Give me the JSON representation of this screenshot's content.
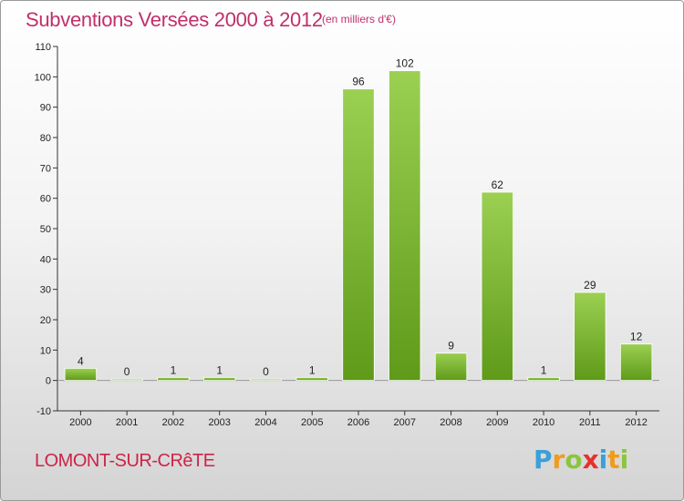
{
  "title": "Subventions Versées 2000 à 2012",
  "unit_note": "(en milliers d'€)",
  "place": "LOMONT-SUR-CRêTE",
  "logo": {
    "letters": [
      "P",
      "r",
      "o",
      "x",
      "i",
      "t",
      "i"
    ],
    "colors": [
      "#3aa0d8",
      "#f29b1b",
      "#8bc53f",
      "#e5322d",
      "#3aa0d8",
      "#f29b1b",
      "#8bc53f"
    ]
  },
  "colors": {
    "bar_light": "#9bd052",
    "bar_dark": "#5f9a19",
    "title": "#c0306a"
  },
  "chart_data": {
    "type": "bar",
    "categories": [
      "2000",
      "2001",
      "2002",
      "2003",
      "2004",
      "2005",
      "2006",
      "2007",
      "2008",
      "2009",
      "2010",
      "2011",
      "2012"
    ],
    "values": [
      4,
      0,
      1,
      1,
      0,
      1,
      96,
      102,
      9,
      62,
      1,
      29,
      12
    ],
    "ylim": [
      -10,
      110
    ],
    "yticks": [
      -10,
      0,
      10,
      20,
      30,
      40,
      50,
      60,
      70,
      80,
      90,
      100,
      110
    ],
    "grid": false,
    "legend": "none"
  }
}
